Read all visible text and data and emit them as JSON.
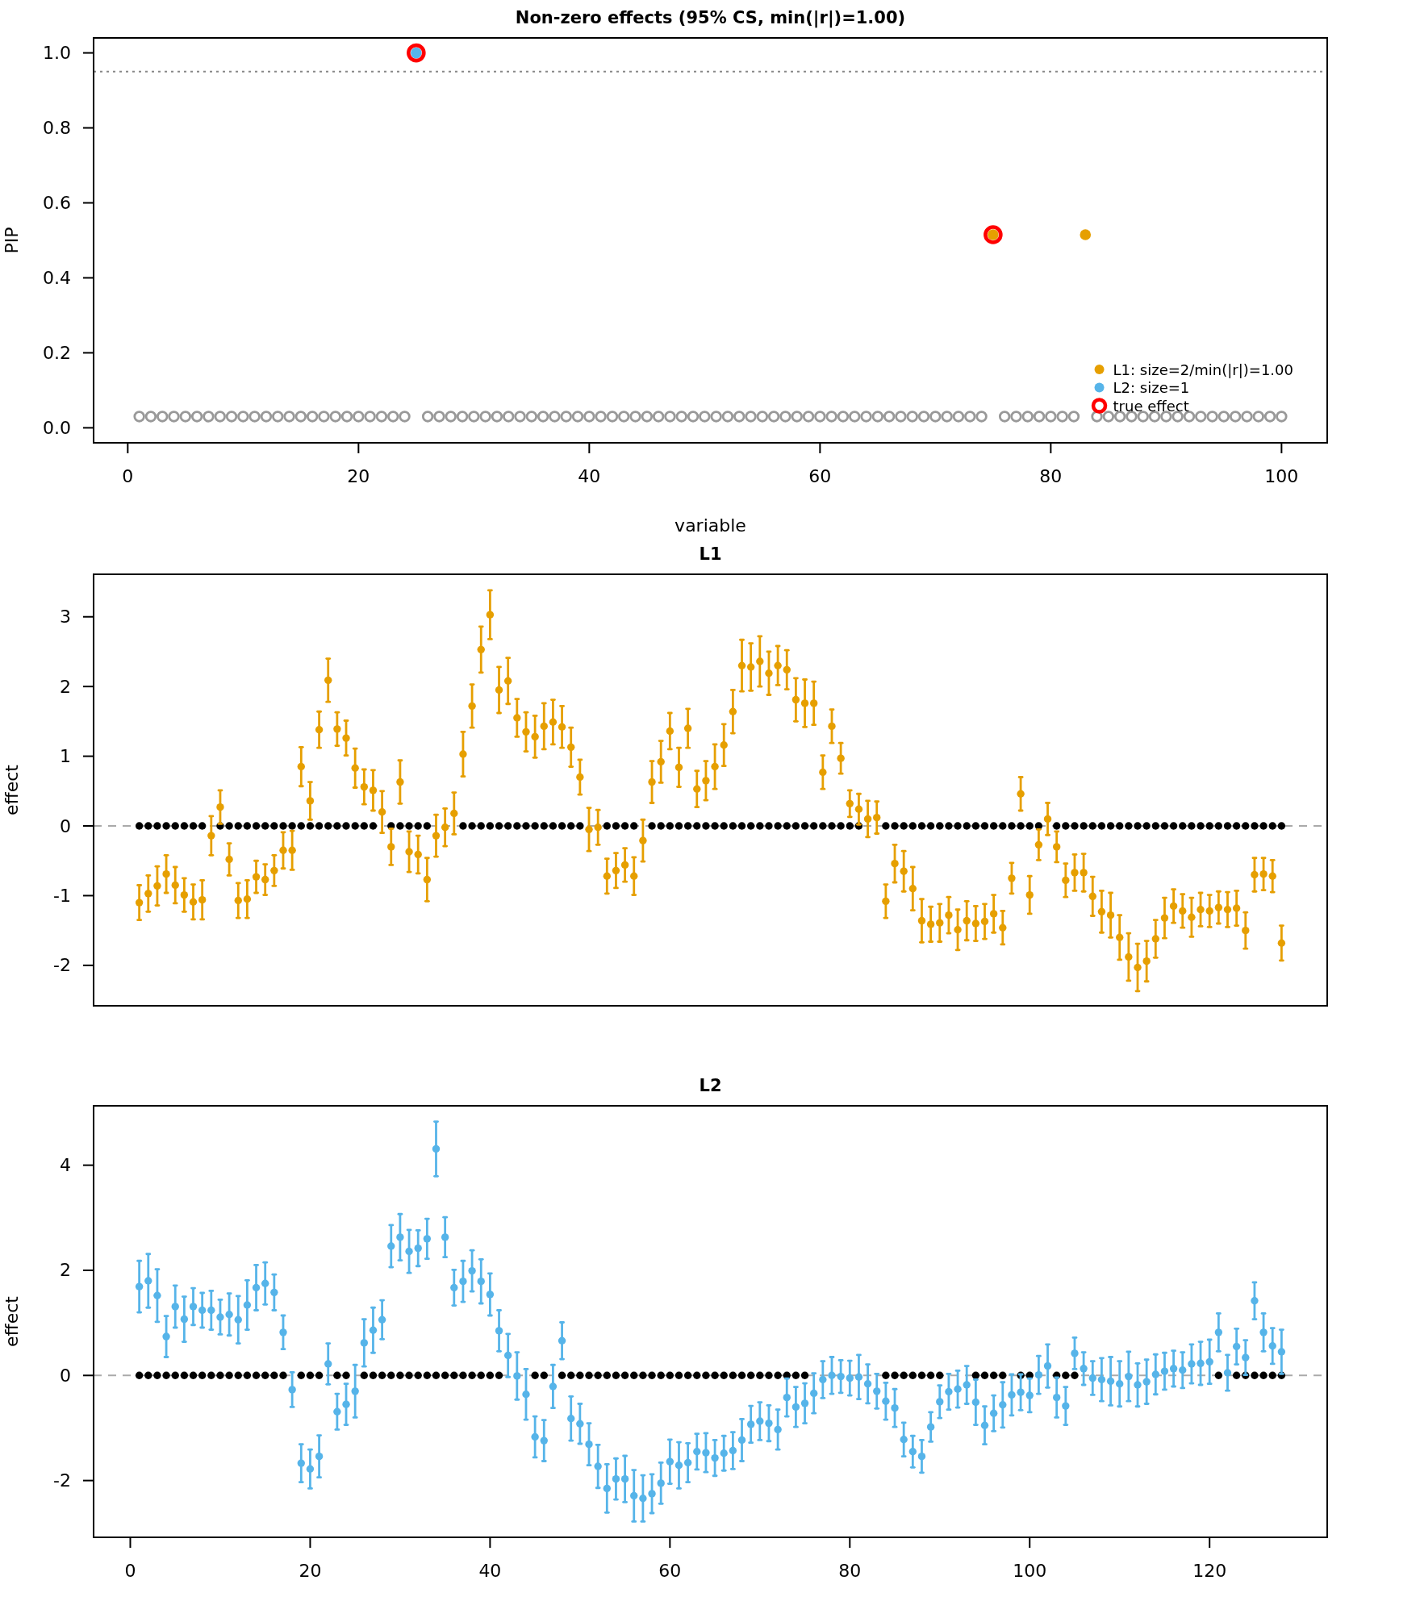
{
  "chart_data": [
    {
      "type": "scatter",
      "title": "Non-zero effects (95% CS, min(|r|)=1.00)",
      "xlabel": "variable",
      "ylabel": "PIP",
      "xlim": [
        -2.96,
        103.96
      ],
      "xticks": [
        0,
        20,
        40,
        60,
        80,
        100
      ],
      "ylim": [
        -0.04,
        1.04
      ],
      "yticks": [
        {
          "value": 0,
          "label": "0.0"
        },
        {
          "value": 0.2,
          "label": "0.2"
        },
        {
          "value": 0.4,
          "label": "0.4"
        },
        {
          "value": 0.6,
          "label": "0.6"
        },
        {
          "value": 0.8,
          "label": "0.8"
        },
        {
          "value": 1,
          "label": "1.0"
        }
      ],
      "legend": "bottom right",
      "ref_lines": [
        {
          "axis": "y",
          "value": 0.95,
          "line_style": "dotted",
          "color": "#888888"
        }
      ],
      "series": [
        {
          "color": "#999999",
          "x": [
            1,
            2,
            3,
            4,
            5,
            6,
            7,
            8,
            9,
            10,
            11,
            12,
            13,
            14,
            15,
            16,
            17,
            18,
            19,
            20,
            21,
            22,
            23,
            24,
            26,
            27,
            28,
            29,
            30,
            31,
            32,
            33,
            34,
            35,
            36,
            37,
            38,
            39,
            40,
            41,
            42,
            43,
            44,
            45,
            46,
            47,
            48,
            49,
            50,
            51,
            52,
            53,
            54,
            55,
            56,
            57,
            58,
            59,
            60,
            61,
            62,
            63,
            64,
            65,
            66,
            67,
            68,
            69,
            70,
            71,
            72,
            73,
            74,
            76,
            77,
            78,
            79,
            80,
            81,
            82,
            84,
            85,
            86,
            87,
            88,
            89,
            90,
            91,
            92,
            93,
            94,
            95,
            96,
            97,
            98,
            99,
            100
          ],
          "values": [
            0.03,
            0.03,
            0.03,
            0.03,
            0.03,
            0.03,
            0.03,
            0.03,
            0.03,
            0.03,
            0.03,
            0.03,
            0.03,
            0.03,
            0.03,
            0.03,
            0.03,
            0.03,
            0.03,
            0.03,
            0.03,
            0.03,
            0.03,
            0.03,
            0.03,
            0.03,
            0.03,
            0.03,
            0.03,
            0.03,
            0.03,
            0.03,
            0.03,
            0.03,
            0.03,
            0.03,
            0.03,
            0.03,
            0.03,
            0.03,
            0.03,
            0.03,
            0.03,
            0.03,
            0.03,
            0.03,
            0.03,
            0.03,
            0.03,
            0.03,
            0.03,
            0.03,
            0.03,
            0.03,
            0.03,
            0.03,
            0.03,
            0.03,
            0.03,
            0.03,
            0.03,
            0.03,
            0.03,
            0.03,
            0.03,
            0.03,
            0.03,
            0.03,
            0.03,
            0.03,
            0.03,
            0.03,
            0.03,
            0.03,
            0.03,
            0.03,
            0.03,
            0.03,
            0.03,
            0.03,
            0.03,
            0.03,
            0.03,
            0.03,
            0.03,
            0.03,
            0.03,
            0.03,
            0.03,
            0.03,
            0.03,
            0.03,
            0.03,
            0.03,
            0.03,
            0.03,
            0.03
          ]
        },
        {
          "name": "L1: size=2/min(|r|)=1.00",
          "color": "#e69f00",
          "x": [
            75,
            83
          ],
          "values": [
            0.515,
            0.515
          ]
        },
        {
          "name": "L2: size=1",
          "color": "#56b4e9",
          "x": [
            25
          ],
          "values": [
            1.0
          ]
        },
        {
          "name": "true effect",
          "color": "#ff0000",
          "x": [
            25,
            75
          ],
          "values": [
            1.0,
            0.515
          ]
        }
      ]
    },
    {
      "type": "scatter",
      "title": "L1",
      "ylabel": "effect",
      "xlim": [
        -4.08,
        133.08
      ],
      "ylim": [
        -2.58,
        3.61
      ],
      "yticks": [
        -2,
        -1,
        0,
        1,
        2,
        3
      ],
      "tick_labels": "y",
      "ref_lines": [
        {
          "axis": "y",
          "value": 0,
          "line_style": "dashed",
          "color": "#aaaaaa"
        }
      ],
      "x": [
        1,
        2,
        3,
        4,
        5,
        6,
        7,
        8,
        9,
        10,
        11,
        12,
        13,
        14,
        15,
        16,
        17,
        18,
        19,
        20,
        21,
        22,
        23,
        24,
        25,
        26,
        27,
        28,
        29,
        30,
        31,
        32,
        33,
        34,
        35,
        36,
        37,
        38,
        39,
        40,
        41,
        42,
        43,
        44,
        45,
        46,
        47,
        48,
        49,
        50,
        51,
        52,
        53,
        54,
        55,
        56,
        57,
        58,
        59,
        60,
        61,
        62,
        63,
        64,
        65,
        66,
        67,
        68,
        69,
        70,
        71,
        72,
        73,
        74,
        75,
        76,
        77,
        78,
        79,
        80,
        81,
        82,
        83,
        84,
        85,
        86,
        87,
        88,
        89,
        90,
        91,
        92,
        93,
        94,
        95,
        96,
        97,
        98,
        99,
        100,
        101,
        102,
        103,
        104,
        105,
        106,
        107,
        108,
        109,
        110,
        111,
        112,
        113,
        114,
        115,
        116,
        117,
        118,
        119,
        120,
        121,
        122,
        123,
        124,
        125,
        126,
        127,
        128
      ],
      "series": [
        {
          "color": "#000000",
          "values": [
            0,
            0,
            0,
            0,
            0,
            0,
            0,
            0,
            null,
            0,
            0,
            0,
            0,
            0,
            0,
            0,
            0,
            0,
            0,
            0,
            0,
            0,
            0,
            0,
            0,
            0,
            0,
            null,
            0,
            0,
            0,
            0,
            0,
            null,
            null,
            null,
            0,
            0,
            0,
            0,
            0,
            0,
            0,
            0,
            0,
            0,
            0,
            0,
            0,
            0,
            null,
            null,
            0,
            0,
            0,
            0,
            null,
            0,
            0,
            0,
            0,
            0,
            0,
            0,
            0,
            0,
            0,
            0,
            0,
            0,
            0,
            0,
            0,
            0,
            0,
            0,
            0,
            0,
            0,
            0,
            0,
            null,
            null,
            0,
            0,
            0,
            0,
            0,
            0,
            0,
            0,
            0,
            0,
            0,
            0,
            0,
            0,
            0,
            0,
            0,
            0,
            null,
            0,
            0,
            0,
            0,
            0,
            0,
            0,
            0,
            0,
            0,
            0,
            0,
            0,
            0,
            0,
            0,
            0,
            0,
            0,
            0,
            0,
            0,
            0,
            0,
            0,
            0
          ]
        },
        {
          "color": "#e69f00",
          "values": [
            -1.1,
            -0.97,
            -0.86,
            -0.69,
            -0.85,
            -0.99,
            -1.09,
            -1.06,
            -0.14,
            0.27,
            -0.48,
            -1.07,
            -1.05,
            -0.73,
            -0.77,
            -0.64,
            -0.35,
            -0.35,
            0.85,
            0.36,
            1.38,
            2.09,
            1.39,
            1.26,
            0.83,
            0.56,
            0.51,
            0.2,
            -0.3,
            0.63,
            -0.37,
            -0.41,
            -0.77,
            -0.14,
            -0.02,
            0.18,
            1.03,
            1.72,
            2.53,
            3.03,
            1.95,
            2.08,
            1.55,
            1.35,
            1.28,
            1.43,
            1.49,
            1.42,
            1.13,
            0.7,
            -0.05,
            -0.02,
            -0.72,
            -0.64,
            -0.56,
            -0.72,
            -0.21,
            0.63,
            0.92,
            1.36,
            0.84,
            1.4,
            0.53,
            0.65,
            0.85,
            1.16,
            1.64,
            2.3,
            2.28,
            2.36,
            2.19,
            2.3,
            2.24,
            1.81,
            1.76,
            1.76,
            0.77,
            1.43,
            0.97,
            0.32,
            0.24,
            0.1,
            0.12,
            -1.08,
            -0.54,
            -0.65,
            -0.9,
            -1.36,
            -1.41,
            -1.39,
            -1.28,
            -1.49,
            -1.36,
            -1.4,
            -1.37,
            -1.26,
            -1.46,
            -0.75,
            0.46,
            -0.99,
            -0.27,
            0.1,
            -0.3,
            -0.78,
            -0.67,
            -0.67,
            -1.01,
            -1.23,
            -1.28,
            -1.6,
            -1.88,
            -2.03,
            -1.94,
            -1.62,
            -1.32,
            -1.15,
            -1.22,
            -1.31,
            -1.2,
            -1.22,
            -1.17,
            -1.2,
            -1.18,
            -1.5,
            -0.7,
            -0.69,
            -0.72,
            -1.68
          ],
          "errors": [
            0.25,
            0.26,
            0.28,
            0.27,
            0.26,
            0.24,
            0.25,
            0.28,
            0.28,
            0.24,
            0.23,
            0.25,
            0.27,
            0.23,
            0.22,
            0.22,
            0.26,
            0.28,
            0.28,
            0.27,
            0.26,
            0.31,
            0.24,
            0.25,
            0.28,
            0.25,
            0.29,
            0.3,
            0.26,
            0.31,
            0.29,
            0.27,
            0.31,
            0.3,
            0.27,
            0.3,
            0.32,
            0.31,
            0.33,
            0.35,
            0.33,
            0.33,
            0.27,
            0.28,
            0.3,
            0.33,
            0.32,
            0.3,
            0.28,
            0.25,
            0.31,
            0.25,
            0.25,
            0.25,
            0.24,
            0.27,
            0.3,
            0.3,
            0.3,
            0.26,
            0.28,
            0.28,
            0.26,
            0.28,
            0.32,
            0.3,
            0.31,
            0.37,
            0.34,
            0.36,
            0.31,
            0.28,
            0.28,
            0.31,
            0.34,
            0.31,
            0.24,
            0.24,
            0.22,
            0.19,
            0.22,
            0.26,
            0.23,
            0.24,
            0.27,
            0.29,
            0.31,
            0.31,
            0.25,
            0.27,
            0.26,
            0.29,
            0.28,
            0.25,
            0.25,
            0.27,
            0.24,
            0.22,
            0.24,
            0.27,
            0.22,
            0.23,
            0.22,
            0.24,
            0.26,
            0.27,
            0.28,
            0.3,
            0.32,
            0.32,
            0.34,
            0.34,
            0.29,
            0.27,
            0.29,
            0.24,
            0.24,
            0.28,
            0.24,
            0.23,
            0.23,
            0.25,
            0.25,
            0.26,
            0.24,
            0.23,
            0.23,
            0.25
          ]
        }
      ]
    },
    {
      "type": "scatter",
      "title": "L2",
      "ylabel": "effect",
      "xlim": [
        -4.08,
        133.08
      ],
      "xticks": [
        0,
        20,
        40,
        60,
        80,
        100,
        120
      ],
      "ylim": [
        -3.08,
        5.13
      ],
      "yticks": [
        -2,
        0,
        2,
        4
      ],
      "ref_lines": [
        {
          "axis": "y",
          "value": 0,
          "line_style": "dashed",
          "color": "#aaaaaa"
        }
      ],
      "x": [
        1,
        2,
        3,
        4,
        5,
        6,
        7,
        8,
        9,
        10,
        11,
        12,
        13,
        14,
        15,
        16,
        17,
        18,
        19,
        20,
        21,
        22,
        23,
        24,
        25,
        26,
        27,
        28,
        29,
        30,
        31,
        32,
        33,
        34,
        35,
        36,
        37,
        38,
        39,
        40,
        41,
        42,
        43,
        44,
        45,
        46,
        47,
        48,
        49,
        50,
        51,
        52,
        53,
        54,
        55,
        56,
        57,
        58,
        59,
        60,
        61,
        62,
        63,
        64,
        65,
        66,
        67,
        68,
        69,
        70,
        71,
        72,
        73,
        74,
        75,
        76,
        77,
        78,
        79,
        80,
        81,
        82,
        83,
        84,
        85,
        86,
        87,
        88,
        89,
        90,
        91,
        92,
        93,
        94,
        95,
        96,
        97,
        98,
        99,
        100,
        101,
        102,
        103,
        104,
        105,
        106,
        107,
        108,
        109,
        110,
        111,
        112,
        113,
        114,
        115,
        116,
        117,
        118,
        119,
        120,
        121,
        122,
        123,
        124,
        125,
        126,
        127,
        128
      ],
      "series": [
        {
          "color": "#000000",
          "values": [
            0,
            0,
            0,
            0,
            0,
            0,
            0,
            0,
            0,
            0,
            0,
            0,
            0,
            0,
            0,
            0,
            0,
            null,
            0,
            0,
            0,
            null,
            0,
            0,
            null,
            0,
            0,
            0,
            0,
            0,
            0,
            0,
            0,
            0,
            0,
            0,
            0,
            0,
            0,
            0,
            0,
            null,
            null,
            null,
            0,
            0,
            null,
            0,
            0,
            0,
            0,
            0,
            0,
            0,
            0,
            0,
            0,
            0,
            0,
            0,
            0,
            0,
            0,
            0,
            0,
            0,
            0,
            0,
            0,
            0,
            0,
            0,
            0,
            0,
            0,
            null,
            null,
            null,
            null,
            null,
            null,
            null,
            null,
            0,
            0,
            0,
            0,
            0,
            0,
            0,
            null,
            null,
            null,
            0,
            0,
            0,
            0,
            null,
            0,
            0,
            null,
            null,
            0,
            0,
            0,
            null,
            null,
            null,
            null,
            null,
            null,
            null,
            null,
            null,
            null,
            null,
            null,
            null,
            null,
            null,
            0,
            null,
            0,
            0,
            0,
            0,
            0,
            0
          ]
        },
        {
          "color": "#56b4e9",
          "values": [
            1.69,
            1.8,
            1.52,
            0.74,
            1.31,
            1.07,
            1.31,
            1.24,
            1.24,
            1.11,
            1.16,
            1.06,
            1.34,
            1.67,
            1.75,
            1.58,
            0.82,
            -0.27,
            -1.67,
            -1.78,
            -1.54,
            0.22,
            -0.69,
            -0.55,
            -0.3,
            0.62,
            0.86,
            1.06,
            2.46,
            2.63,
            2.36,
            2.42,
            2.6,
            4.31,
            2.63,
            1.67,
            1.79,
            1.99,
            1.79,
            1.54,
            0.85,
            0.38,
            -0.01,
            -0.36,
            -1.17,
            -1.24,
            -0.21,
            0.66,
            -0.82,
            -0.92,
            -1.31,
            -1.73,
            -2.15,
            -1.97,
            -1.97,
            -2.29,
            -2.34,
            -2.25,
            -2.05,
            -1.64,
            -1.71,
            -1.66,
            -1.45,
            -1.47,
            -1.57,
            -1.48,
            -1.43,
            -1.23,
            -0.93,
            -0.87,
            -0.91,
            -1.03,
            -0.42,
            -0.6,
            -0.53,
            -0.34,
            -0.08,
            0.0,
            -0.02,
            -0.05,
            -0.03,
            -0.16,
            -0.3,
            -0.49,
            -0.62,
            -1.22,
            -1.45,
            -1.54,
            -0.98,
            -0.5,
            -0.31,
            -0.26,
            -0.18,
            -0.51,
            -0.95,
            -0.72,
            -0.56,
            -0.37,
            -0.32,
            -0.38,
            0.01,
            0.18,
            -0.42,
            -0.58,
            0.42,
            0.13,
            -0.05,
            -0.08,
            -0.11,
            -0.16,
            -0.02,
            -0.18,
            -0.12,
            0.02,
            0.08,
            0.13,
            0.1,
            0.22,
            0.23,
            0.26,
            0.82,
            0.05,
            0.55,
            0.34,
            1.42,
            0.82,
            0.56,
            0.45
          ],
          "errors": [
            0.49,
            0.51,
            0.5,
            0.39,
            0.4,
            0.43,
            0.35,
            0.33,
            0.37,
            0.33,
            0.4,
            0.45,
            0.47,
            0.43,
            0.4,
            0.34,
            0.32,
            0.33,
            0.36,
            0.37,
            0.4,
            0.39,
            0.34,
            0.39,
            0.5,
            0.45,
            0.43,
            0.37,
            0.4,
            0.44,
            0.41,
            0.34,
            0.38,
            0.52,
            0.38,
            0.34,
            0.39,
            0.39,
            0.42,
            0.4,
            0.39,
            0.41,
            0.45,
            0.48,
            0.39,
            0.39,
            0.41,
            0.35,
            0.42,
            0.38,
            0.4,
            0.41,
            0.46,
            0.39,
            0.44,
            0.49,
            0.44,
            0.37,
            0.39,
            0.42,
            0.44,
            0.37,
            0.34,
            0.37,
            0.34,
            0.33,
            0.35,
            0.4,
            0.35,
            0.36,
            0.34,
            0.38,
            0.36,
            0.38,
            0.38,
            0.38,
            0.35,
            0.35,
            0.31,
            0.33,
            0.42,
            0.37,
            0.33,
            0.35,
            0.36,
            0.32,
            0.3,
            0.31,
            0.28,
            0.31,
            0.34,
            0.35,
            0.36,
            0.43,
            0.36,
            0.34,
            0.43,
            0.39,
            0.34,
            0.32,
            0.36,
            0.41,
            0.38,
            0.36,
            0.3,
            0.31,
            0.32,
            0.41,
            0.46,
            0.43,
            0.47,
            0.41,
            0.42,
            0.38,
            0.35,
            0.34,
            0.34,
            0.37,
            0.41,
            0.42,
            0.36,
            0.34,
            0.34,
            0.33,
            0.35,
            0.36,
            0.34,
            0.42
          ]
        }
      ]
    }
  ]
}
